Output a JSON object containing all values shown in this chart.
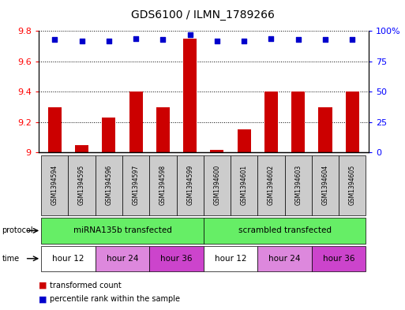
{
  "title": "GDS6100 / ILMN_1789266",
  "samples": [
    "GSM1394594",
    "GSM1394595",
    "GSM1394596",
    "GSM1394597",
    "GSM1394598",
    "GSM1394599",
    "GSM1394600",
    "GSM1394601",
    "GSM1394602",
    "GSM1394603",
    "GSM1394604",
    "GSM1394605"
  ],
  "bar_values": [
    9.3,
    9.05,
    9.23,
    9.4,
    9.3,
    9.75,
    9.02,
    9.15,
    9.4,
    9.4,
    9.3,
    9.4
  ],
  "percentile_values": [
    93,
    92,
    92,
    94,
    93,
    97,
    92,
    92,
    94,
    93,
    93,
    93
  ],
  "bar_base": 9.0,
  "ylim_left": [
    9.0,
    9.8
  ],
  "ylim_right": [
    0,
    100
  ],
  "yticks_left": [
    9.0,
    9.2,
    9.4,
    9.6,
    9.8
  ],
  "ytick_labels_left": [
    "9",
    "9.2",
    "9.4",
    "9.6",
    "9.8"
  ],
  "yticks_right": [
    0,
    25,
    50,
    75,
    100
  ],
  "ytick_labels_right": [
    "0",
    "25",
    "50",
    "75",
    "100%"
  ],
  "bar_color": "#cc0000",
  "dot_color": "#0000cc",
  "protocol_labels": [
    "miRNA135b transfected",
    "scrambled transfected"
  ],
  "protocol_ranges": [
    [
      0,
      6
    ],
    [
      6,
      12
    ]
  ],
  "protocol_color": "#66ee66",
  "time_groups": [
    {
      "label": "hour 12",
      "range": [
        0,
        2
      ],
      "color": "#ffffff"
    },
    {
      "label": "hour 24",
      "range": [
        2,
        4
      ],
      "color": "#dd88dd"
    },
    {
      "label": "hour 36",
      "range": [
        4,
        6
      ],
      "color": "#cc44cc"
    },
    {
      "label": "hour 12",
      "range": [
        6,
        8
      ],
      "color": "#ffffff"
    },
    {
      "label": "hour 24",
      "range": [
        8,
        10
      ],
      "color": "#dd88dd"
    },
    {
      "label": "hour 36",
      "range": [
        10,
        12
      ],
      "color": "#cc44cc"
    }
  ],
  "legend_items": [
    {
      "label": "transformed count",
      "color": "#cc0000"
    },
    {
      "label": "percentile rank within the sample",
      "color": "#0000cc"
    }
  ],
  "fig_width": 5.13,
  "fig_height": 3.93,
  "dpi": 100
}
